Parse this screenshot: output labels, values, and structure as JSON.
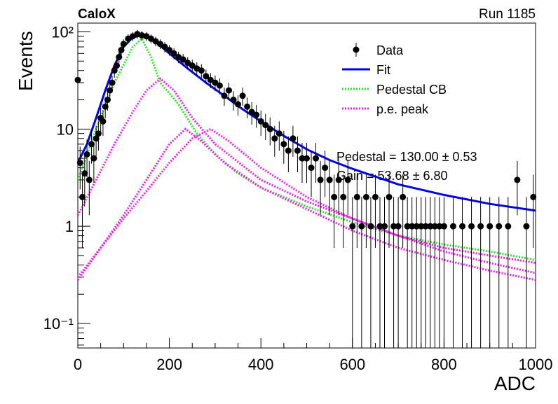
{
  "chart_data": {
    "type": "scatter",
    "title": "CaloX",
    "subtitle": "Run 1185",
    "xlabel": "ADC",
    "ylabel": "Events",
    "log_y": true,
    "xlim": [
      0,
      1000
    ],
    "ylim": [
      0.056,
      123
    ],
    "xticks": [
      0,
      200,
      400,
      600,
      800,
      1000
    ],
    "yticks": [
      {
        "value": 0.1,
        "label": "10⁻¹"
      },
      1,
      10,
      {
        "value": 100,
        "label": "10²"
      }
    ],
    "legend": "top-right",
    "data": {
      "name": "Data",
      "color": "#000000",
      "x": [
        0,
        5,
        10,
        15,
        20,
        25,
        30,
        35,
        40,
        45,
        50,
        55,
        60,
        65,
        70,
        75,
        80,
        85,
        90,
        95,
        100,
        110,
        120,
        130,
        140,
        150,
        160,
        170,
        180,
        190,
        200,
        210,
        220,
        230,
        240,
        250,
        260,
        270,
        280,
        290,
        300,
        310,
        320,
        330,
        340,
        350,
        360,
        370,
        380,
        390,
        400,
        410,
        420,
        430,
        440,
        450,
        460,
        470,
        480,
        490,
        500,
        510,
        520,
        530,
        540,
        550,
        560,
        570,
        580,
        590,
        600,
        610,
        620,
        630,
        640,
        650,
        660,
        670,
        680,
        690,
        700,
        710,
        720,
        730,
        740,
        750,
        760,
        770,
        780,
        790,
        800,
        820,
        840,
        860,
        880,
        900,
        920,
        940,
        960,
        980,
        995
      ],
      "values": [
        32,
        4.5,
        2,
        3.5,
        5.5,
        3,
        7,
        5,
        8,
        9,
        13,
        12,
        17,
        20,
        25,
        30,
        40,
        45,
        55,
        65,
        75,
        85,
        90,
        95,
        92,
        90,
        85,
        80,
        75,
        70,
        65,
        60,
        55,
        52,
        48,
        45,
        42,
        40,
        35,
        32,
        30,
        28,
        22,
        25,
        20,
        18,
        22,
        17,
        15,
        14,
        12,
        11,
        10,
        8,
        9,
        7,
        6,
        8,
        6,
        5,
        5,
        4,
        5,
        3,
        4,
        3,
        2,
        3,
        2,
        3,
        1,
        2,
        1,
        2,
        1,
        2,
        1,
        1,
        2,
        1,
        1,
        2,
        1,
        1,
        1,
        1,
        1,
        1,
        1,
        1,
        1,
        1,
        1,
        1,
        1,
        1,
        1,
        1,
        3,
        1,
        2
      ],
      "errors": [
        5.7,
        2.1,
        1.4,
        1.9,
        2.3,
        1.7,
        2.6,
        2.2,
        2.8,
        3,
        3.6,
        3.5,
        4.1,
        4.5,
        5,
        5.5,
        6.3,
        6.7,
        7.4,
        8.1,
        8.7,
        9.2,
        9.5,
        9.7,
        9.6,
        9.5,
        9.2,
        8.9,
        8.7,
        8.4,
        8.1,
        7.7,
        7.4,
        7.2,
        6.9,
        6.7,
        6.5,
        6.3,
        5.9,
        5.7,
        5.5,
        5.3,
        4.7,
        5,
        4.5,
        4.2,
        4.7,
        4.1,
        3.9,
        3.7,
        3.5,
        3.3,
        3.2,
        2.8,
        3,
        2.6,
        2.4,
        2.8,
        2.4,
        2.2,
        2.2,
        2,
        2.2,
        1.7,
        2,
        1.7,
        1.4,
        1.7,
        1.4,
        1.7,
        1,
        1.4,
        1,
        1.4,
        1,
        1.4,
        1,
        1,
        1.4,
        1,
        1,
        1.4,
        1,
        1,
        1,
        1,
        1,
        1,
        1,
        1,
        1,
        1,
        1,
        1,
        1,
        1,
        1,
        1,
        1.7,
        1,
        1.4
      ]
    },
    "curves": [
      {
        "name": "Fit",
        "color": "#0000ee",
        "style": "solid",
        "components": [
          {
            "x": [
              0,
              20,
              40,
              60,
              80,
              100,
              120,
              140,
              160,
              180,
              200,
              240,
              280,
              320,
              360,
              400,
              450,
              500,
              550,
              600,
              700,
              800,
              900,
              1000
            ],
            "values": [
              4.5,
              7,
              13,
              25,
              45,
              70,
              88,
              92,
              85,
              72,
              60,
              42,
              30,
              22,
              16,
              12,
              8.5,
              6.2,
              4.8,
              3.9,
              2.7,
              2.1,
              1.7,
              1.45
            ]
          }
        ]
      },
      {
        "name": "Pedestal CB",
        "color": "#33dd33",
        "style": "dotted",
        "components": [
          {
            "x": [
              0,
              40,
              80,
              120,
              140,
              160,
              180,
              220,
              260,
              300,
              350,
              400,
              500,
              600,
              700,
              800,
              900,
              1000
            ],
            "values": [
              3,
              10,
              30,
              70,
              85,
              55,
              30,
              18,
              9,
              5.5,
              3.5,
              2.5,
              1.6,
              1.1,
              0.8,
              0.65,
              0.55,
              0.45
            ]
          }
        ]
      },
      {
        "name": "p.e. peak",
        "color": "#ee22ee",
        "style": "dotted",
        "components": [
          {
            "x": [
              0,
              40,
              80,
              120,
              150,
              180,
              210,
              250,
              300,
              400,
              500,
              600,
              700,
              800,
              900,
              1000
            ],
            "values": [
              1.3,
              3,
              7,
              15,
              25,
              33,
              25,
              13,
              7,
              3,
              1.8,
              1.2,
              0.8,
              0.6,
              0.5,
              0.42
            ]
          },
          {
            "x": [
              0,
              50,
              100,
              150,
              200,
              235,
              270,
              320,
              400,
              500,
              600,
              700,
              800,
              900,
              1000
            ],
            "values": [
              0.28,
              0.6,
              1.3,
              3,
              7,
              10,
              7.5,
              4.5,
              2.5,
              1.5,
              0.9,
              0.6,
              0.45,
              0.35,
              0.28
            ]
          },
          {
            "x": [
              0,
              50,
              100,
              150,
              200,
              250,
              290,
              330,
              400,
              500,
              600,
              700,
              800,
              900,
              1000
            ],
            "values": [
              0.3,
              0.6,
              1.2,
              2.3,
              4.5,
              8,
              10,
              7.5,
              4,
              2,
              1.2,
              0.8,
              0.55,
              0.42,
              0.33
            ]
          }
        ]
      }
    ],
    "annotations": [
      "Pedestal = 130.00 ± 0.53",
      "Gain = 53.68 ± 6.80"
    ]
  }
}
